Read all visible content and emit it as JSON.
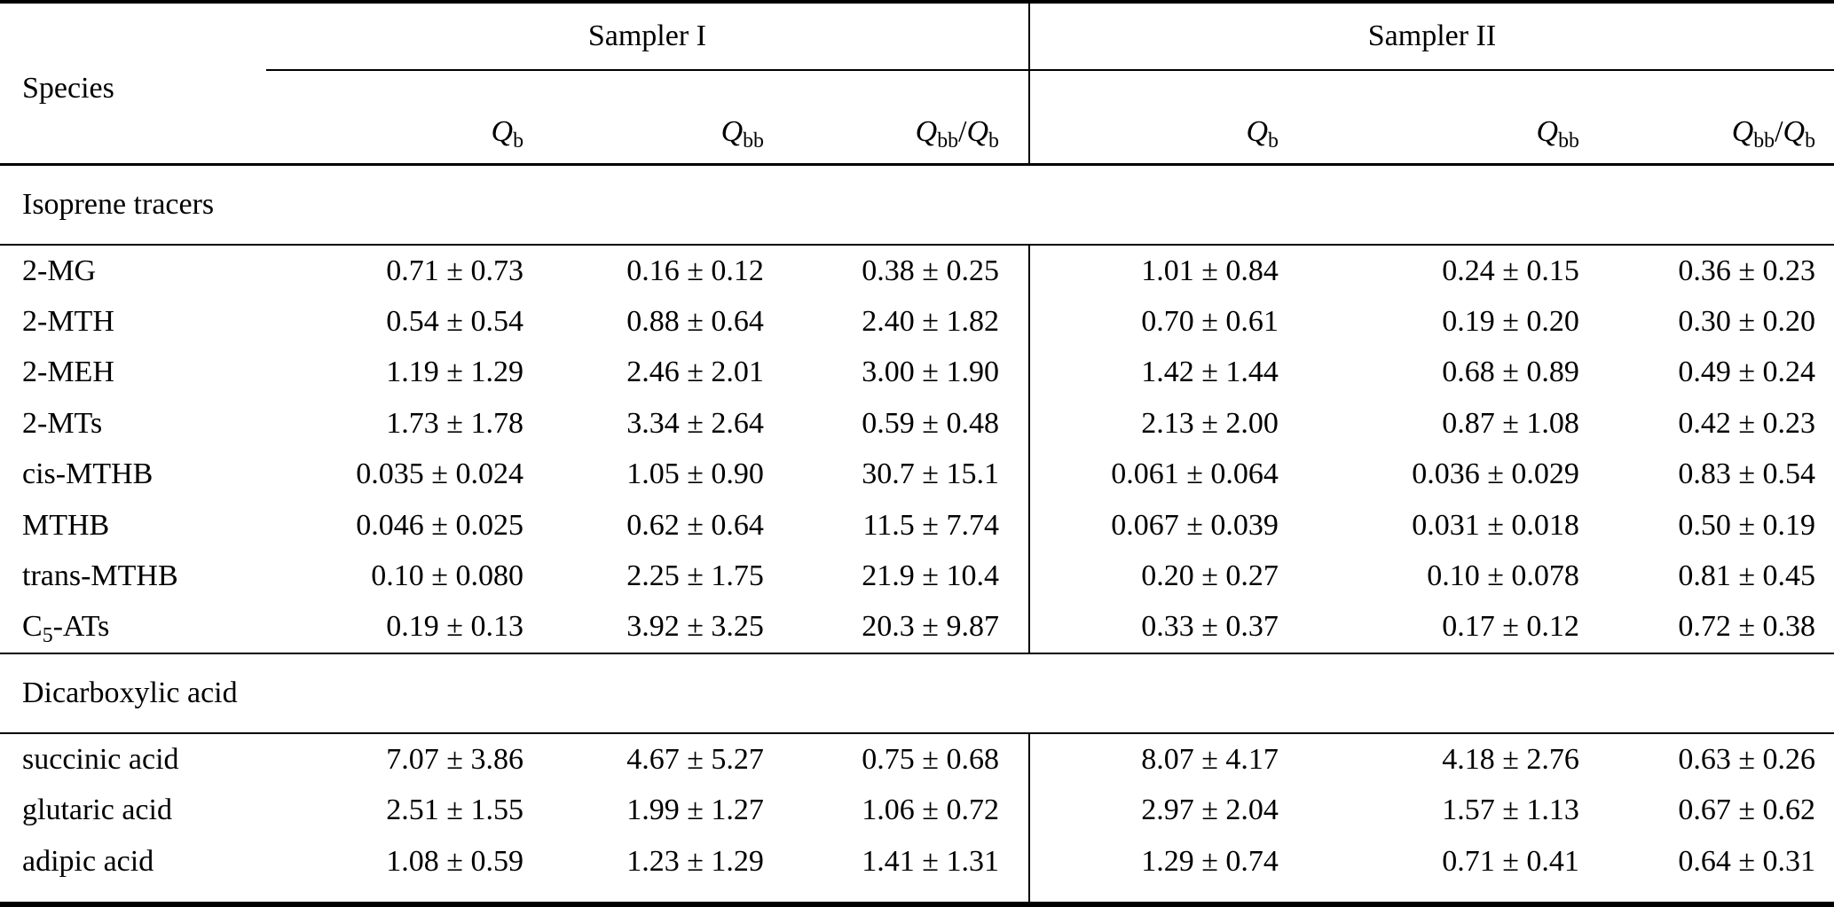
{
  "page": {
    "background_color": "#ffffff",
    "text_color": "#000000",
    "rule_color": "#000000"
  },
  "table": {
    "header": {
      "species": "Species",
      "group1": "Sampler I",
      "group2": "Sampler II",
      "subcols": [
        [
          {
            "t": "Q",
            "i": true
          },
          {
            "t": "b",
            "sub": true
          }
        ],
        [
          {
            "t": "Q",
            "i": true
          },
          {
            "t": "bb",
            "sub": true
          }
        ],
        [
          {
            "t": "Q",
            "i": true
          },
          {
            "t": "bb",
            "sub": true
          },
          {
            "t": "/"
          },
          {
            "t": "Q",
            "i": true
          },
          {
            "t": "b",
            "sub": true
          }
        ],
        [
          {
            "t": "Q",
            "i": true
          },
          {
            "t": "b",
            "sub": true
          }
        ],
        [
          {
            "t": "Q",
            "i": true
          },
          {
            "t": "bb",
            "sub": true
          }
        ],
        [
          {
            "t": "Q",
            "i": true
          },
          {
            "t": "bb",
            "sub": true
          },
          {
            "t": "/"
          },
          {
            "t": "Q",
            "i": true
          },
          {
            "t": "b",
            "sub": true
          }
        ]
      ]
    },
    "sections": [
      {
        "title": "Isoprene tracers",
        "rows": [
          {
            "species": "2-MG",
            "values": [
              "0.71 ± 0.73",
              "0.16 ± 0.12",
              "0.38 ± 0.25",
              "1.01 ± 0.84",
              "0.24 ± 0.15",
              "0.36 ± 0.23"
            ]
          },
          {
            "species": "2-MTH",
            "values": [
              "0.54 ± 0.54",
              "0.88 ± 0.64",
              "2.40 ± 1.82",
              "0.70 ± 0.61",
              "0.19 ± 0.20",
              "0.30 ± 0.20"
            ]
          },
          {
            "species": "2-MEH",
            "values": [
              "1.19 ± 1.29",
              "2.46 ± 2.01",
              "3.00 ± 1.90",
              "1.42 ± 1.44",
              "0.68 ± 0.89",
              "0.49 ± 0.24"
            ]
          },
          {
            "species": "2-MTs",
            "values": [
              "1.73 ± 1.78",
              "3.34 ± 2.64",
              "0.59 ± 0.48",
              "2.13 ± 2.00",
              "0.87 ± 1.08",
              "0.42 ± 0.23"
            ]
          },
          {
            "species": "cis-MTHB",
            "values": [
              "0.035 ± 0.024",
              "1.05 ± 0.90",
              "30.7 ± 15.1",
              "0.061 ± 0.064",
              "0.036 ± 0.029",
              "0.83 ± 0.54"
            ]
          },
          {
            "species": "MTHB",
            "values": [
              "0.046 ± 0.025",
              "0.62 ± 0.64",
              "11.5 ± 7.74",
              "0.067 ± 0.039",
              "0.031 ± 0.018",
              "0.50 ± 0.19"
            ]
          },
          {
            "species": "trans-MTHB",
            "values": [
              "0.10 ± 0.080",
              "2.25 ± 1.75",
              "21.9 ± 10.4",
              "0.20 ± 0.27",
              "0.10 ± 0.078",
              "0.81 ± 0.45"
            ]
          },
          {
            "species": [
              {
                "t": "C"
              },
              {
                "t": "5",
                "sub": true
              },
              {
                "t": "-ATs"
              }
            ],
            "values": [
              "0.19 ± 0.13",
              "3.92 ± 3.25",
              "20.3 ± 9.87",
              "0.33 ± 0.37",
              "0.17 ± 0.12",
              "0.72 ± 0.38"
            ]
          }
        ]
      },
      {
        "title": "Dicarboxylic acid",
        "rows": [
          {
            "species": "succinic acid",
            "values": [
              "7.07 ± 3.86",
              "4.67 ± 5.27",
              "0.75 ± 0.68",
              "8.07 ± 4.17",
              "4.18 ± 2.76",
              "0.63 ± 0.26"
            ]
          },
          {
            "species": "glutaric acid",
            "values": [
              "2.51 ± 1.55",
              "1.99 ± 1.27",
              "1.06 ± 0.72",
              "2.97 ± 2.04",
              "1.57 ± 1.13",
              "0.67 ± 0.62"
            ]
          },
          {
            "species": "adipic acid",
            "values": [
              "1.08 ± 0.59",
              "1.23 ± 1.29",
              "1.41 ± 1.31",
              "1.29 ± 0.74",
              "0.71 ± 0.41",
              "0.64 ± 0.31"
            ]
          }
        ]
      }
    ]
  }
}
